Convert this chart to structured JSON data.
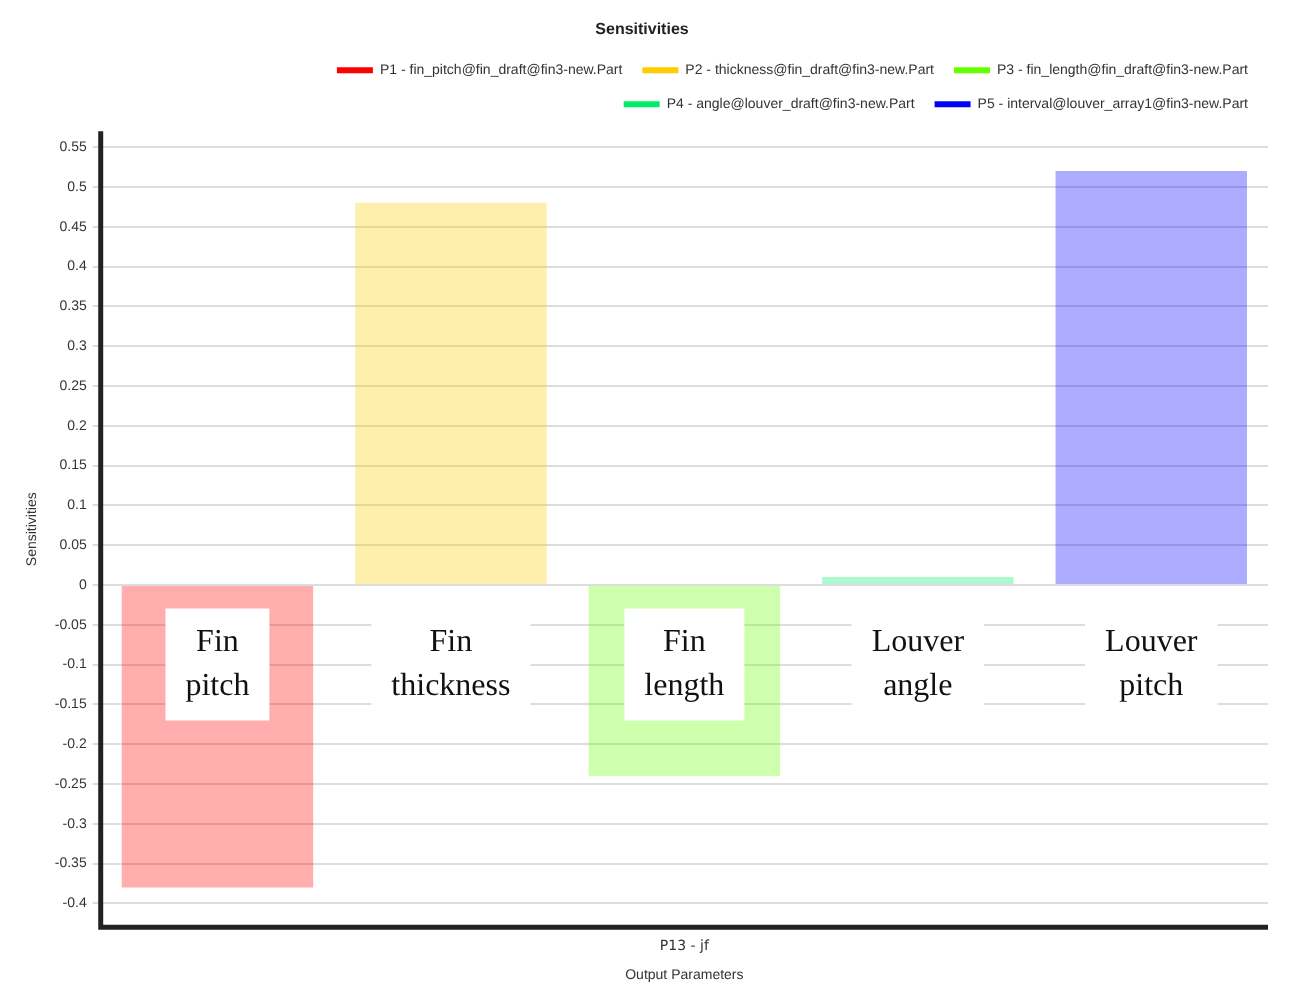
{
  "chart_data": {
    "type": "bar",
    "title": "Sensitivities",
    "xlabel": "Output Parameters",
    "ylabel": "Sensitivities",
    "categories": [
      "Fin pitch",
      "Fin thickness",
      "Fin length",
      "Louver angle",
      "Louver pitch"
    ],
    "series": [
      {
        "name": "P1 - fin_pitch@fin_draft@fin3-new.Part",
        "color": "#ff0000",
        "values": [
          -0.38,
          null,
          null,
          null,
          null
        ]
      },
      {
        "name": "P2 - thickness@fin_draft@fin3-new.Part",
        "color": "#ffcc00",
        "values": [
          null,
          0.48,
          null,
          null,
          null
        ]
      },
      {
        "name": "P3 - fin_length@fin_draft@fin3-new.Part",
        "color": "#66ff00",
        "values": [
          null,
          null,
          -0.24,
          null,
          null
        ]
      },
      {
        "name": "P4 - angle@louver_draft@fin3-new.Part",
        "color": "#00ee66",
        "values": [
          null,
          null,
          null,
          0.01,
          null
        ]
      },
      {
        "name": "P5 - interval@louver_array1@fin3-new.Part",
        "color": "#0000ff",
        "values": [
          null,
          null,
          null,
          null,
          0.52
        ]
      }
    ],
    "annotations": [
      "P13 - jf"
    ],
    "ylim": [
      -0.43,
      0.57
    ],
    "yticks": [
      -0.4,
      -0.35,
      -0.3,
      -0.25,
      -0.2,
      -0.15,
      -0.1,
      -0.05,
      0,
      0.05,
      0.1,
      0.15,
      0.2,
      0.25,
      0.3,
      0.35,
      0.4,
      0.45,
      0.5,
      0.55
    ],
    "grid": "y",
    "legend": "top right"
  }
}
